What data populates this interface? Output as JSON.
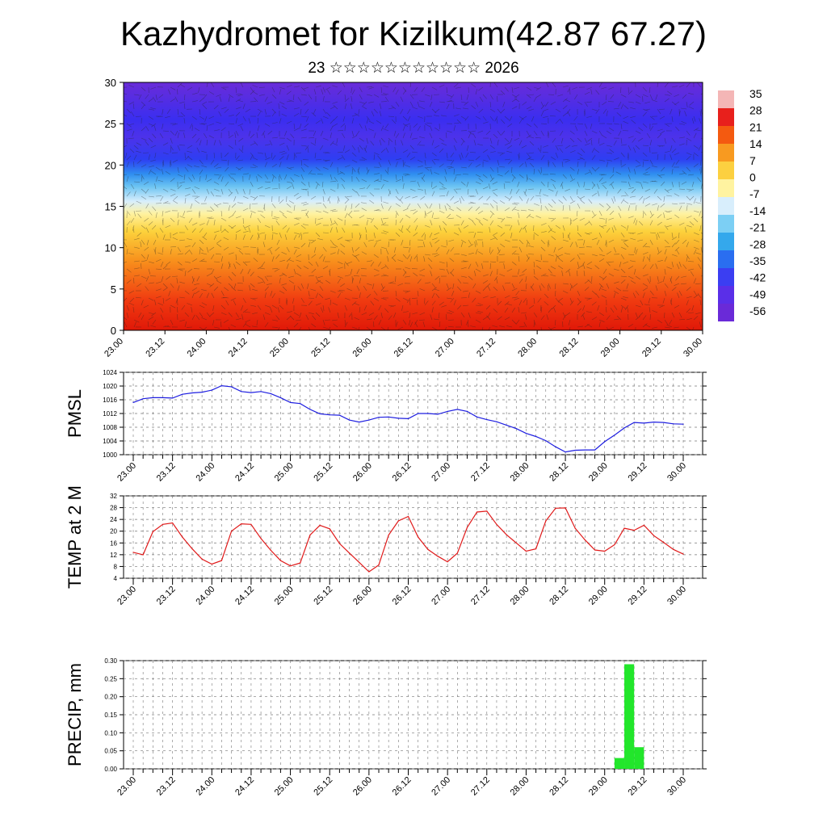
{
  "title": "Kazhydromet for Kizilkum(42.87 67.27)",
  "subtitle": "23 ☆☆☆☆☆☆☆☆☆☆☆ 2026",
  "time_labels": [
    "23.00",
    "23.12",
    "24.00",
    "24.12",
    "25.00",
    "25.12",
    "26.00",
    "26.12",
    "27.00",
    "27.12",
    "28.00",
    "28.12",
    "29.00",
    "29.12",
    "30.00"
  ],
  "chart_data": [
    {
      "type": "heatmap",
      "description_id": "cross-section",
      "y_ticks": [
        0,
        5,
        10,
        15,
        20,
        25,
        30
      ],
      "ylim": [
        0,
        30
      ],
      "colorbar_labels": [
        "35",
        "28",
        "21",
        "14",
        "7",
        "0",
        "-7",
        "-14",
        "-21",
        "-28",
        "-35",
        "-42",
        "-49",
        "-56"
      ],
      "colorbar_colors": [
        "#f4b6b6",
        "#e8201c",
        "#f45a10",
        "#f89a20",
        "#fcd040",
        "#fff3a0",
        "#d8eefc",
        "#7ccff4",
        "#34a8ec",
        "#2a6ef0",
        "#3b3ef2",
        "#5a2fe8",
        "#6a2ad8"
      ]
    },
    {
      "type": "line",
      "ylabel": "PMSL",
      "y_ticks": [
        1000,
        1004,
        1008,
        1012,
        1016,
        1020,
        1024
      ],
      "ylim": [
        1000,
        1024
      ],
      "color": "#1e1ee0",
      "x": [
        23.0,
        23.125,
        23.25,
        23.375,
        23.5,
        23.625,
        23.75,
        23.875,
        24.0,
        24.125,
        24.25,
        24.375,
        24.5,
        24.625,
        24.75,
        24.875,
        25.0,
        25.125,
        25.25,
        25.375,
        25.5,
        25.625,
        25.75,
        25.875,
        26.0,
        26.125,
        26.25,
        26.375,
        26.5,
        26.625,
        26.75,
        26.875,
        27.0,
        27.125,
        27.25,
        27.375,
        27.5,
        27.625,
        27.75,
        27.875,
        28.0,
        28.125,
        28.25,
        28.375,
        28.5,
        28.625,
        28.75,
        28.875,
        29.0,
        29.125,
        29.25,
        29.375,
        29.5,
        29.625,
        29.75,
        29.875,
        30.0
      ],
      "values": [
        1015.2,
        1016.3,
        1016.6,
        1016.6,
        1016.5,
        1017.6,
        1018.0,
        1018.2,
        1018.8,
        1020.1,
        1019.8,
        1018.4,
        1018.1,
        1018.4,
        1017.8,
        1016.6,
        1015.2,
        1014.9,
        1013.2,
        1011.9,
        1011.6,
        1011.5,
        1010.1,
        1009.5,
        1010.1,
        1010.9,
        1011.0,
        1010.6,
        1010.5,
        1012.0,
        1012.0,
        1011.8,
        1012.6,
        1013.2,
        1012.6,
        1011.0,
        1010.2,
        1009.6,
        1008.6,
        1007.6,
        1006.2,
        1005.3,
        1004.1,
        1002.3,
        1000.8,
        1001.3,
        1001.4,
        1001.4,
        1003.8,
        1005.7,
        1007.8,
        1009.4,
        1009.2,
        1009.5,
        1009.4,
        1009.0,
        1008.9
      ]
    },
    {
      "type": "line",
      "ylabel": "TEMP at 2 M",
      "y_ticks": [
        4,
        8,
        12,
        16,
        20,
        24,
        28,
        32
      ],
      "ylim": [
        4,
        32
      ],
      "color": "#e01a1a",
      "x": [
        23.0,
        23.125,
        23.25,
        23.375,
        23.5,
        23.625,
        23.75,
        23.875,
        24.0,
        24.125,
        24.25,
        24.375,
        24.5,
        24.625,
        24.75,
        24.875,
        25.0,
        25.125,
        25.25,
        25.375,
        25.5,
        25.625,
        25.75,
        25.875,
        26.0,
        26.125,
        26.25,
        26.375,
        26.5,
        26.625,
        26.75,
        26.875,
        27.0,
        27.125,
        27.25,
        27.375,
        27.5,
        27.625,
        27.75,
        27.875,
        28.0,
        28.125,
        28.25,
        28.375,
        28.5,
        28.625,
        28.75,
        28.875,
        29.0,
        29.125,
        29.25,
        29.375,
        29.5,
        29.625,
        29.75,
        29.875,
        30.0
      ],
      "values": [
        12.8,
        12.0,
        19.8,
        22.3,
        22.8,
        18.0,
        14.0,
        10.5,
        8.8,
        10.0,
        20.0,
        22.5,
        22.3,
        17.5,
        13.5,
        10.0,
        8.2,
        9.2,
        18.7,
        22.0,
        20.8,
        15.8,
        12.6,
        9.4,
        6.2,
        8.5,
        18.7,
        23.5,
        25.0,
        18.0,
        13.8,
        11.5,
        9.6,
        12.5,
        21.3,
        26.5,
        26.8,
        22.3,
        18.8,
        16.0,
        13.2,
        14.0,
        23.5,
        27.8,
        27.9,
        21.0,
        17.0,
        13.6,
        13.2,
        15.4,
        21.0,
        20.3,
        22.0,
        18.5,
        16.2,
        13.8,
        12.2
      ]
    },
    {
      "type": "bar",
      "ylabel": "PRECIP, mm",
      "y_ticks": [
        "0.00",
        "0.05",
        "0.10",
        "0.15",
        "0.20",
        "0.25",
        "0.30"
      ],
      "ylim": [
        0,
        0.3
      ],
      "color": "#22e62b",
      "bars": [
        {
          "x_start": 29.125,
          "x_end": 29.25,
          "value": 0.03
        },
        {
          "x_start": 29.25,
          "x_end": 29.375,
          "value": 0.29
        },
        {
          "x_start": 29.375,
          "x_end": 29.5,
          "value": 0.06
        }
      ]
    }
  ]
}
